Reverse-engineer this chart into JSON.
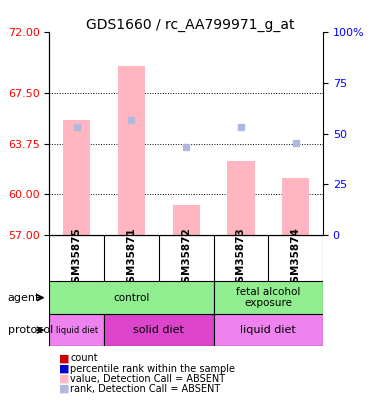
{
  "title": "GDS1660 / rc_AA799971_g_at",
  "samples": [
    "GSM35875",
    "GSM35871",
    "GSM35872",
    "GSM35873",
    "GSM35874"
  ],
  "ylim_left": [
    57,
    72
  ],
  "ylim_right": [
    0,
    100
  ],
  "yticks_left": [
    57,
    60,
    63.75,
    67.5,
    72
  ],
  "yticks_right": [
    0,
    25,
    50,
    75,
    100
  ],
  "bar_values": [
    65.5,
    69.5,
    59.2,
    62.5,
    61.2
  ],
  "rank_values": [
    65.0,
    65.5,
    63.5,
    65.0,
    63.8
  ],
  "bar_color": "#ffb6c1",
  "rank_color": "#b0b8e0",
  "agent_groups": [
    {
      "label": "control",
      "cols": [
        0,
        1,
        2
      ],
      "color": "#90ee90"
    },
    {
      "label": "fetal alcohol\nexposure",
      "cols": [
        3,
        4
      ],
      "color": "#90ee90"
    }
  ],
  "protocol_groups": [
    {
      "label": "liquid diet",
      "cols": [
        0
      ],
      "color": "#ee82ee"
    },
    {
      "label": "solid diet",
      "cols": [
        1,
        2
      ],
      "color": "#dd44cc"
    },
    {
      "label": "liquid diet",
      "cols": [
        3,
        4
      ],
      "color": "#ee82ee"
    }
  ],
  "legend_items": [
    {
      "color": "#cc0000",
      "label": "count"
    },
    {
      "color": "#0000cc",
      "label": "percentile rank within the sample"
    },
    {
      "color": "#ffb6c1",
      "label": "value, Detection Call = ABSENT"
    },
    {
      "color": "#b0b8e0",
      "label": "rank, Detection Call = ABSENT"
    }
  ]
}
